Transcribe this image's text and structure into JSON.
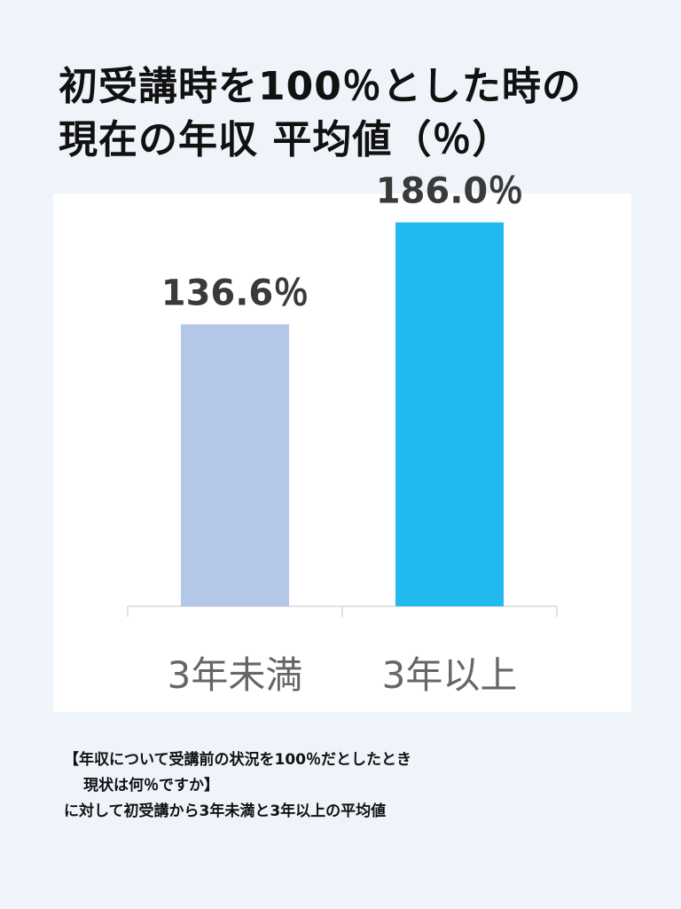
{
  "title": {
    "line1": "初受講時を100％とした時の",
    "line2": "現在の年収 平均値（％）"
  },
  "chart_data": {
    "type": "bar",
    "categories": [
      "3年未満",
      "3年以上"
    ],
    "values": [
      136.6,
      186.0
    ],
    "value_labels": [
      "136.6％",
      "186.0％"
    ],
    "colors": [
      "#b4c7e7",
      "#22b8f0"
    ],
    "ylim": [
      0,
      200
    ],
    "grid": false,
    "legend": "none",
    "xlabel": "",
    "ylabel": ""
  },
  "note": {
    "line1": "【年収について受講前の状況を100％だとしたとき",
    "line2": "現状は何％ですか】",
    "line3": "に対して初受講から3年未満と3年以上の平均値"
  }
}
